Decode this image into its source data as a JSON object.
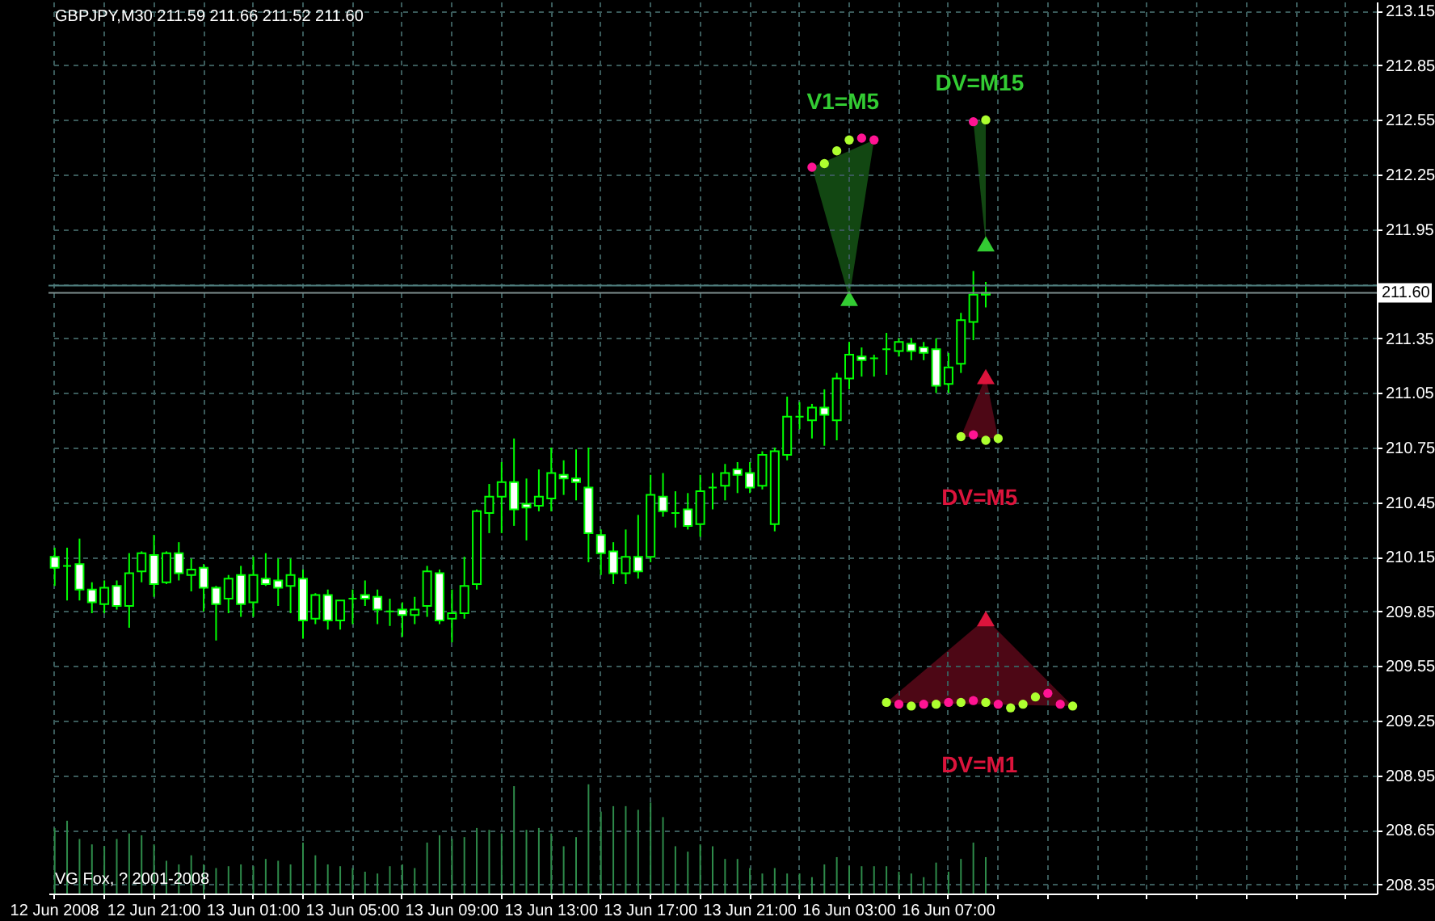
{
  "chart_data": {
    "type": "candlestick",
    "title": "GBPJPY,M30  211.59 211.66 211.52 211.60",
    "categories": [
      "12 Jun 2008",
      null,
      null,
      null,
      null,
      null,
      null,
      null,
      "12 Jun 21:00",
      null,
      null,
      null,
      null,
      null,
      null,
      null,
      "13 Jun 01:00",
      null,
      null,
      null,
      null,
      null,
      null,
      null,
      "13 Jun 05:00",
      null,
      null,
      null,
      null,
      null,
      null,
      null,
      "13 Jun 09:00",
      null,
      null,
      null,
      null,
      null,
      null,
      null,
      "13 Jun 13:00",
      null,
      null,
      null,
      null,
      null,
      null,
      null,
      "13 Jun 17:00",
      null,
      null,
      null,
      null,
      null,
      null,
      null,
      "13 Jun 21:00",
      null,
      null,
      null,
      null,
      null,
      null,
      null,
      "16 Jun 03:00",
      null,
      null,
      null,
      null,
      null,
      null,
      null,
      "16 Jun 07:00",
      null,
      null,
      null,
      null,
      null,
      null,
      null,
      null,
      null,
      null,
      null,
      null,
      null,
      null,
      null,
      null,
      null,
      null,
      null,
      null,
      null,
      null,
      null,
      null,
      null,
      null,
      null,
      null,
      null,
      null,
      null,
      null,
      null,
      null
    ],
    "ohlc": [
      [
        210.15,
        210.2,
        209.99,
        210.09
      ],
      [
        210.1,
        210.2,
        209.91,
        210.1
      ],
      [
        210.11,
        210.25,
        209.91,
        209.97
      ],
      [
        209.97,
        210.01,
        209.84,
        209.9
      ],
      [
        209.89,
        210.02,
        209.84,
        209.98
      ],
      [
        209.99,
        210.02,
        209.86,
        209.88
      ],
      [
        209.88,
        210.17,
        209.76,
        210.06
      ],
      [
        210.07,
        210.18,
        210.01,
        210.17
      ],
      [
        210.16,
        210.27,
        209.93,
        210.0
      ],
      [
        210.01,
        210.18,
        210.0,
        210.17
      ],
      [
        210.17,
        210.23,
        210.02,
        210.06
      ],
      [
        210.05,
        210.14,
        209.96,
        210.08
      ],
      [
        210.09,
        210.11,
        209.85,
        209.98
      ],
      [
        209.98,
        209.99,
        209.69,
        209.89
      ],
      [
        209.92,
        210.05,
        209.84,
        210.03
      ],
      [
        210.05,
        210.1,
        209.82,
        209.89
      ],
      [
        209.9,
        210.15,
        209.82,
        210.05
      ],
      [
        210.03,
        210.17,
        209.99,
        210.0
      ],
      [
        210.02,
        210.14,
        209.88,
        209.98
      ],
      [
        209.99,
        210.14,
        209.84,
        210.05
      ],
      [
        210.03,
        210.08,
        209.7,
        209.8
      ],
      [
        209.81,
        209.95,
        209.78,
        209.94
      ],
      [
        209.94,
        209.97,
        209.75,
        209.8
      ],
      [
        209.8,
        209.91,
        209.75,
        209.91
      ],
      [
        209.92,
        209.97,
        209.78,
        209.92
      ],
      [
        209.94,
        210.02,
        209.88,
        209.92
      ],
      [
        209.93,
        209.97,
        209.78,
        209.86
      ],
      [
        209.85,
        209.92,
        209.77,
        209.85
      ],
      [
        209.86,
        209.9,
        209.71,
        209.83
      ],
      [
        209.83,
        209.93,
        209.78,
        209.86
      ],
      [
        209.88,
        210.1,
        209.82,
        210.07
      ],
      [
        210.06,
        210.08,
        209.78,
        209.8
      ],
      [
        209.81,
        209.97,
        209.68,
        209.84
      ],
      [
        209.84,
        210.15,
        209.81,
        209.99
      ],
      [
        210.0,
        210.41,
        209.97,
        210.4
      ],
      [
        210.39,
        210.55,
        210.28,
        210.48
      ],
      [
        210.48,
        210.67,
        210.28,
        210.56
      ],
      [
        210.56,
        210.8,
        210.32,
        210.41
      ],
      [
        210.44,
        210.58,
        210.24,
        210.42
      ],
      [
        210.43,
        210.63,
        210.4,
        210.48
      ],
      [
        210.47,
        210.75,
        210.4,
        210.61
      ],
      [
        210.6,
        210.68,
        210.49,
        210.58
      ],
      [
        210.58,
        210.74,
        210.46,
        210.56
      ],
      [
        210.53,
        210.75,
        210.12,
        210.28
      ],
      [
        210.27,
        210.3,
        210.05,
        210.17
      ],
      [
        210.18,
        210.23,
        210.0,
        210.06
      ],
      [
        210.06,
        210.3,
        210.0,
        210.15
      ],
      [
        210.15,
        210.38,
        210.03,
        210.07
      ],
      [
        210.15,
        210.6,
        210.12,
        210.49
      ],
      [
        210.48,
        210.61,
        210.37,
        210.4
      ],
      [
        210.39,
        210.51,
        210.31,
        210.39
      ],
      [
        210.41,
        210.5,
        210.3,
        210.32
      ],
      [
        210.33,
        210.6,
        210.26,
        210.51
      ],
      [
        210.53,
        210.61,
        210.41,
        210.53
      ],
      [
        210.54,
        210.66,
        210.46,
        210.61
      ],
      [
        210.63,
        210.67,
        210.5,
        210.6
      ],
      [
        210.61,
        210.67,
        210.5,
        210.53
      ],
      [
        210.54,
        210.73,
        210.52,
        210.71
      ],
      [
        210.33,
        210.75,
        210.29,
        210.73
      ],
      [
        210.71,
        211.03,
        210.68,
        210.92
      ],
      [
        210.92,
        211.0,
        210.85,
        210.92
      ],
      [
        210.9,
        210.99,
        210.8,
        210.97
      ],
      [
        210.97,
        211.07,
        210.76,
        210.93
      ],
      [
        210.9,
        211.16,
        210.79,
        211.13
      ],
      [
        211.13,
        211.33,
        211.07,
        211.26
      ],
      [
        211.25,
        211.3,
        211.14,
        211.23
      ],
      [
        211.24,
        211.26,
        211.14,
        211.24
      ],
      [
        211.29,
        211.38,
        211.15,
        211.29
      ],
      [
        211.28,
        211.35,
        211.25,
        211.33
      ],
      [
        211.32,
        211.35,
        211.23,
        211.28
      ],
      [
        211.3,
        211.33,
        211.23,
        211.27
      ],
      [
        211.29,
        211.35,
        211.05,
        211.09
      ],
      [
        211.1,
        211.27,
        211.05,
        211.19
      ],
      [
        211.21,
        211.49,
        211.16,
        211.45
      ],
      [
        211.44,
        211.72,
        211.34,
        211.59
      ],
      [
        211.59,
        211.66,
        211.52,
        211.6
      ],
      null,
      null,
      null,
      null,
      null,
      null,
      null,
      null,
      null,
      null,
      null,
      null,
      null,
      null,
      null,
      null,
      null,
      null,
      null,
      null,
      null,
      null,
      null,
      null,
      null,
      null,
      null,
      null,
      null,
      null,
      null
    ],
    "series": [
      {
        "type": "bar",
        "color": "#2e8b4a",
        "values": [
          208.66,
          208.7,
          208.6,
          208.57,
          208.56,
          208.6,
          208.63,
          208.62,
          208.57,
          208.48,
          208.46,
          208.51,
          208.46,
          208.44,
          208.45,
          208.46,
          208.45,
          208.49,
          208.48,
          208.46,
          208.58,
          208.51,
          208.46,
          208.45,
          208.44,
          208.42,
          208.41,
          208.45,
          208.46,
          208.44,
          208.58,
          208.62,
          208.6,
          208.61,
          208.66,
          208.65,
          208.63,
          208.89,
          208.65,
          208.66,
          208.63,
          208.56,
          208.61,
          208.9,
          208.75,
          208.78,
          208.78,
          208.76,
          208.8,
          208.72,
          208.56,
          208.53,
          208.57,
          208.56,
          208.49,
          208.49,
          208.44,
          208.41,
          208.44,
          208.41,
          208.41,
          208.39,
          208.46,
          208.5,
          208.45,
          208.45,
          208.45,
          208.45,
          208.42,
          208.41,
          208.39,
          208.47,
          208.42,
          208.49,
          208.58,
          208.5,
          null,
          null,
          null,
          null,
          null,
          null,
          null,
          null,
          null,
          null,
          null,
          null,
          null,
          null,
          null,
          null,
          null,
          null,
          null,
          null,
          null,
          null,
          null,
          null,
          null,
          null,
          null,
          null,
          null,
          null,
          null
        ]
      },
      {
        "type": "scatter",
        "marker": "circle",
        "colors": [
          null,
          null,
          null,
          null,
          null,
          null,
          null,
          null,
          null,
          null,
          null,
          null,
          null,
          null,
          null,
          null,
          null,
          null,
          null,
          null,
          null,
          null,
          null,
          null,
          null,
          null,
          null,
          null,
          null,
          null,
          null,
          null,
          null,
          null,
          null,
          null,
          null,
          null,
          null,
          null,
          null,
          null,
          null,
          null,
          null,
          null,
          null,
          null,
          null,
          null,
          null,
          null,
          null,
          null,
          null,
          null,
          null,
          null,
          null,
          null,
          null,
          "#ff1493",
          "#adff2f",
          "#adff2f",
          "#adff2f",
          "#ff1493",
          "#ff1493",
          null,
          null,
          null,
          null,
          null,
          null,
          null,
          null,
          null,
          null,
          null,
          null,
          null,
          null,
          null,
          null,
          null,
          null,
          null,
          null,
          null,
          null,
          null,
          null,
          null,
          null,
          null,
          null,
          null,
          null,
          null,
          null,
          null,
          null,
          null,
          null,
          null,
          null,
          null,
          null
        ],
        "values": [
          null,
          null,
          null,
          null,
          null,
          null,
          null,
          null,
          null,
          null,
          null,
          null,
          null,
          null,
          null,
          null,
          null,
          null,
          null,
          null,
          null,
          null,
          null,
          null,
          null,
          null,
          null,
          null,
          null,
          null,
          null,
          null,
          null,
          null,
          null,
          null,
          null,
          null,
          null,
          null,
          null,
          null,
          null,
          null,
          null,
          null,
          null,
          null,
          null,
          null,
          null,
          null,
          null,
          null,
          null,
          null,
          null,
          null,
          null,
          null,
          null,
          212.29,
          212.31,
          212.38,
          212.44,
          212.45,
          212.44,
          null,
          null,
          null,
          null,
          null,
          null,
          null,
          null,
          null,
          null,
          null,
          null,
          null,
          null,
          null,
          null,
          null,
          null,
          null,
          null,
          null,
          null,
          null,
          null,
          null,
          null,
          null,
          null,
          null,
          null,
          null,
          null,
          null,
          null,
          null,
          null,
          null,
          null,
          null,
          null
        ]
      },
      {
        "type": "scatter",
        "marker": "circle",
        "colors": [
          null,
          null,
          null,
          null,
          null,
          null,
          null,
          null,
          null,
          null,
          null,
          null,
          null,
          null,
          null,
          null,
          null,
          null,
          null,
          null,
          null,
          null,
          null,
          null,
          null,
          null,
          null,
          null,
          null,
          null,
          null,
          null,
          null,
          null,
          null,
          null,
          null,
          null,
          null,
          null,
          null,
          null,
          null,
          null,
          null,
          null,
          null,
          null,
          null,
          null,
          null,
          null,
          null,
          null,
          null,
          null,
          null,
          null,
          null,
          null,
          null,
          null,
          null,
          null,
          null,
          null,
          null,
          null,
          null,
          null,
          null,
          null,
          null,
          null,
          "#ff1493",
          "#adff2f",
          null,
          null,
          null,
          null,
          null,
          null,
          null,
          null,
          null,
          null,
          null,
          null,
          null,
          null,
          null,
          null,
          null,
          null,
          null,
          null,
          null,
          null,
          null,
          null,
          null,
          null,
          null,
          null,
          null,
          null,
          null
        ],
        "values": [
          null,
          null,
          null,
          null,
          null,
          null,
          null,
          null,
          null,
          null,
          null,
          null,
          null,
          null,
          null,
          null,
          null,
          null,
          null,
          null,
          null,
          null,
          null,
          null,
          null,
          null,
          null,
          null,
          null,
          null,
          null,
          null,
          null,
          null,
          null,
          null,
          null,
          null,
          null,
          null,
          null,
          null,
          null,
          null,
          null,
          null,
          null,
          null,
          null,
          null,
          null,
          null,
          null,
          null,
          null,
          null,
          null,
          null,
          null,
          null,
          null,
          null,
          null,
          null,
          null,
          null,
          null,
          null,
          null,
          null,
          null,
          null,
          null,
          null,
          212.54,
          212.55,
          null,
          null,
          null,
          null,
          null,
          null,
          null,
          null,
          null,
          null,
          null,
          null,
          null,
          null,
          null,
          null,
          null,
          null,
          null,
          null,
          null,
          null,
          null,
          null,
          null,
          null,
          null,
          null,
          null,
          null,
          null
        ]
      },
      {
        "type": "scatter",
        "marker": "circle",
        "colors": [
          null,
          null,
          null,
          null,
          null,
          null,
          null,
          null,
          null,
          null,
          null,
          null,
          null,
          null,
          null,
          null,
          null,
          null,
          null,
          null,
          null,
          null,
          null,
          null,
          null,
          null,
          null,
          null,
          null,
          null,
          null,
          null,
          null,
          null,
          null,
          null,
          null,
          null,
          null,
          null,
          null,
          null,
          null,
          null,
          null,
          null,
          null,
          null,
          null,
          null,
          null,
          null,
          null,
          null,
          null,
          null,
          null,
          null,
          null,
          null,
          null,
          null,
          null,
          null,
          null,
          null,
          null,
          null,
          null,
          null,
          null,
          null,
          null,
          "#adff2f",
          "#ff1493",
          "#adff2f",
          "#adff2f",
          null,
          null,
          null,
          null,
          null,
          null,
          null,
          null,
          null,
          null,
          null,
          null,
          null,
          null,
          null,
          null,
          null,
          null,
          null,
          null,
          null,
          null,
          null,
          null,
          null,
          null,
          null,
          null,
          null,
          null
        ],
        "values": [
          null,
          null,
          null,
          null,
          null,
          null,
          null,
          null,
          null,
          null,
          null,
          null,
          null,
          null,
          null,
          null,
          null,
          null,
          null,
          null,
          null,
          null,
          null,
          null,
          null,
          null,
          null,
          null,
          null,
          null,
          null,
          null,
          null,
          null,
          null,
          null,
          null,
          null,
          null,
          null,
          null,
          null,
          null,
          null,
          null,
          null,
          null,
          null,
          null,
          null,
          null,
          null,
          null,
          null,
          null,
          null,
          null,
          null,
          null,
          null,
          null,
          null,
          null,
          null,
          null,
          null,
          null,
          null,
          null,
          null,
          null,
          null,
          null,
          210.81,
          210.82,
          210.79,
          210.8,
          null,
          null,
          null,
          null,
          null,
          null,
          null,
          null,
          null,
          null,
          null,
          null,
          null,
          null,
          null,
          null,
          null,
          null,
          null,
          null,
          null,
          null,
          null,
          null,
          null,
          null,
          null,
          null,
          null,
          null
        ]
      },
      {
        "type": "scatter",
        "marker": "circle",
        "colors": [
          null,
          null,
          null,
          null,
          null,
          null,
          null,
          null,
          null,
          null,
          null,
          null,
          null,
          null,
          null,
          null,
          null,
          null,
          null,
          null,
          null,
          null,
          null,
          null,
          null,
          null,
          null,
          null,
          null,
          null,
          null,
          null,
          null,
          null,
          null,
          null,
          null,
          null,
          null,
          null,
          null,
          null,
          null,
          null,
          null,
          null,
          null,
          null,
          null,
          null,
          null,
          null,
          null,
          null,
          null,
          null,
          null,
          null,
          null,
          null,
          null,
          null,
          null,
          null,
          null,
          null,
          null,
          "#adff2f",
          "#ff1493",
          "#adff2f",
          "#ff1493",
          "#adff2f",
          "#ff1493",
          "#adff2f",
          "#ff1493",
          "#adff2f",
          "#ff1493",
          "#adff2f",
          "#adff2f",
          "#adff2f",
          "#ff1493",
          "#ff1493",
          "#adff2f",
          null,
          null,
          null,
          null,
          null,
          null,
          null,
          null,
          null,
          null,
          null,
          null,
          null,
          null,
          null,
          null,
          null,
          null,
          null,
          null,
          null,
          null,
          null,
          null
        ],
        "values": [
          null,
          null,
          null,
          null,
          null,
          null,
          null,
          null,
          null,
          null,
          null,
          null,
          null,
          null,
          null,
          null,
          null,
          null,
          null,
          null,
          null,
          null,
          null,
          null,
          null,
          null,
          null,
          null,
          null,
          null,
          null,
          null,
          null,
          null,
          null,
          null,
          null,
          null,
          null,
          null,
          null,
          null,
          null,
          null,
          null,
          null,
          null,
          null,
          null,
          null,
          null,
          null,
          null,
          null,
          null,
          null,
          null,
          null,
          null,
          null,
          null,
          null,
          null,
          null,
          null,
          null,
          null,
          209.35,
          209.34,
          209.33,
          209.34,
          209.34,
          209.35,
          209.35,
          209.36,
          209.35,
          209.34,
          209.32,
          209.34,
          209.38,
          209.4,
          209.34,
          209.33,
          null,
          null,
          null,
          null,
          null,
          null,
          null,
          null,
          null,
          null,
          null,
          null,
          null,
          null,
          null,
          null,
          null,
          null,
          null,
          null,
          null,
          null,
          null,
          null
        ]
      },
      {
        "type": "scatter",
        "marker": "triangle",
        "color": "#33cc33",
        "values": [
          null,
          null,
          null,
          null,
          null,
          null,
          null,
          null,
          null,
          null,
          null,
          null,
          null,
          null,
          null,
          null,
          null,
          null,
          null,
          null,
          null,
          null,
          null,
          null,
          null,
          null,
          null,
          null,
          null,
          null,
          null,
          null,
          null,
          null,
          null,
          null,
          null,
          null,
          null,
          null,
          null,
          null,
          null,
          null,
          null,
          null,
          null,
          null,
          null,
          null,
          null,
          null,
          null,
          null,
          null,
          null,
          null,
          null,
          null,
          null,
          null,
          null,
          null,
          null,
          211.57,
          null,
          null,
          null,
          null,
          null,
          null,
          null,
          null,
          null,
          null,
          211.87,
          null,
          null,
          null,
          null,
          null,
          null,
          null,
          null,
          null,
          null,
          null,
          null,
          null,
          null,
          null,
          null,
          null,
          null,
          null,
          null,
          null,
          null,
          null,
          null,
          null,
          null,
          null,
          null,
          null,
          null,
          null
        ]
      },
      {
        "type": "scatter",
        "marker": "triangle",
        "color": "#dc143c",
        "values": [
          null,
          null,
          null,
          null,
          null,
          null,
          null,
          null,
          null,
          null,
          null,
          null,
          null,
          null,
          null,
          null,
          null,
          null,
          null,
          null,
          null,
          null,
          null,
          null,
          null,
          null,
          null,
          null,
          null,
          null,
          null,
          null,
          null,
          null,
          null,
          null,
          null,
          null,
          null,
          null,
          null,
          null,
          null,
          null,
          null,
          null,
          null,
          null,
          null,
          null,
          null,
          null,
          null,
          null,
          null,
          null,
          null,
          null,
          null,
          null,
          null,
          null,
          null,
          null,
          null,
          null,
          null,
          null,
          null,
          null,
          null,
          null,
          null,
          null,
          null,
          211.14,
          null,
          null,
          null,
          null,
          null,
          null,
          null,
          null,
          null,
          null,
          null,
          null,
          null,
          null,
          null,
          null,
          null,
          null,
          null,
          null,
          null,
          null,
          null,
          null,
          null,
          null,
          null,
          null,
          null,
          null,
          null
        ]
      },
      {
        "type": "scatter",
        "marker": "triangle",
        "color": "#dc143c",
        "values": [
          null,
          null,
          null,
          null,
          null,
          null,
          null,
          null,
          null,
          null,
          null,
          null,
          null,
          null,
          null,
          null,
          null,
          null,
          null,
          null,
          null,
          null,
          null,
          null,
          null,
          null,
          null,
          null,
          null,
          null,
          null,
          null,
          null,
          null,
          null,
          null,
          null,
          null,
          null,
          null,
          null,
          null,
          null,
          null,
          null,
          null,
          null,
          null,
          null,
          null,
          null,
          null,
          null,
          null,
          null,
          null,
          null,
          null,
          null,
          null,
          null,
          null,
          null,
          null,
          null,
          null,
          null,
          null,
          null,
          null,
          null,
          null,
          null,
          null,
          null,
          209.81,
          null,
          null,
          null,
          null,
          null,
          null,
          null,
          null,
          null,
          null,
          null,
          null,
          null,
          null,
          null,
          null,
          null,
          null,
          null,
          null,
          null,
          null,
          null,
          null,
          null,
          null,
          null,
          null,
          null,
          null,
          null
        ]
      }
    ],
    "ylim": [
      208.3,
      213.2
    ],
    "yticks": [
      208.35,
      208.65,
      208.95,
      209.25,
      209.55,
      209.85,
      210.15,
      210.45,
      210.75,
      211.05,
      211.35,
      {
        "value": 211.65,
        "label": null
      },
      211.95,
      212.25,
      212.55,
      212.85,
      213.15
    ],
    "grid": true,
    "ref_lines": [
      {
        "axis": "y",
        "value": 211.64,
        "color": "#4f7f7f"
      },
      {
        "axis": "y",
        "value": 211.6,
        "label": "211.60",
        "color": "#7f8f8f"
      }
    ],
    "annotations": [
      "V1=M5",
      "DV=M15",
      "DV=M5",
      "DV=M1",
      "VG Fox, ? 2001-2008"
    ]
  }
}
